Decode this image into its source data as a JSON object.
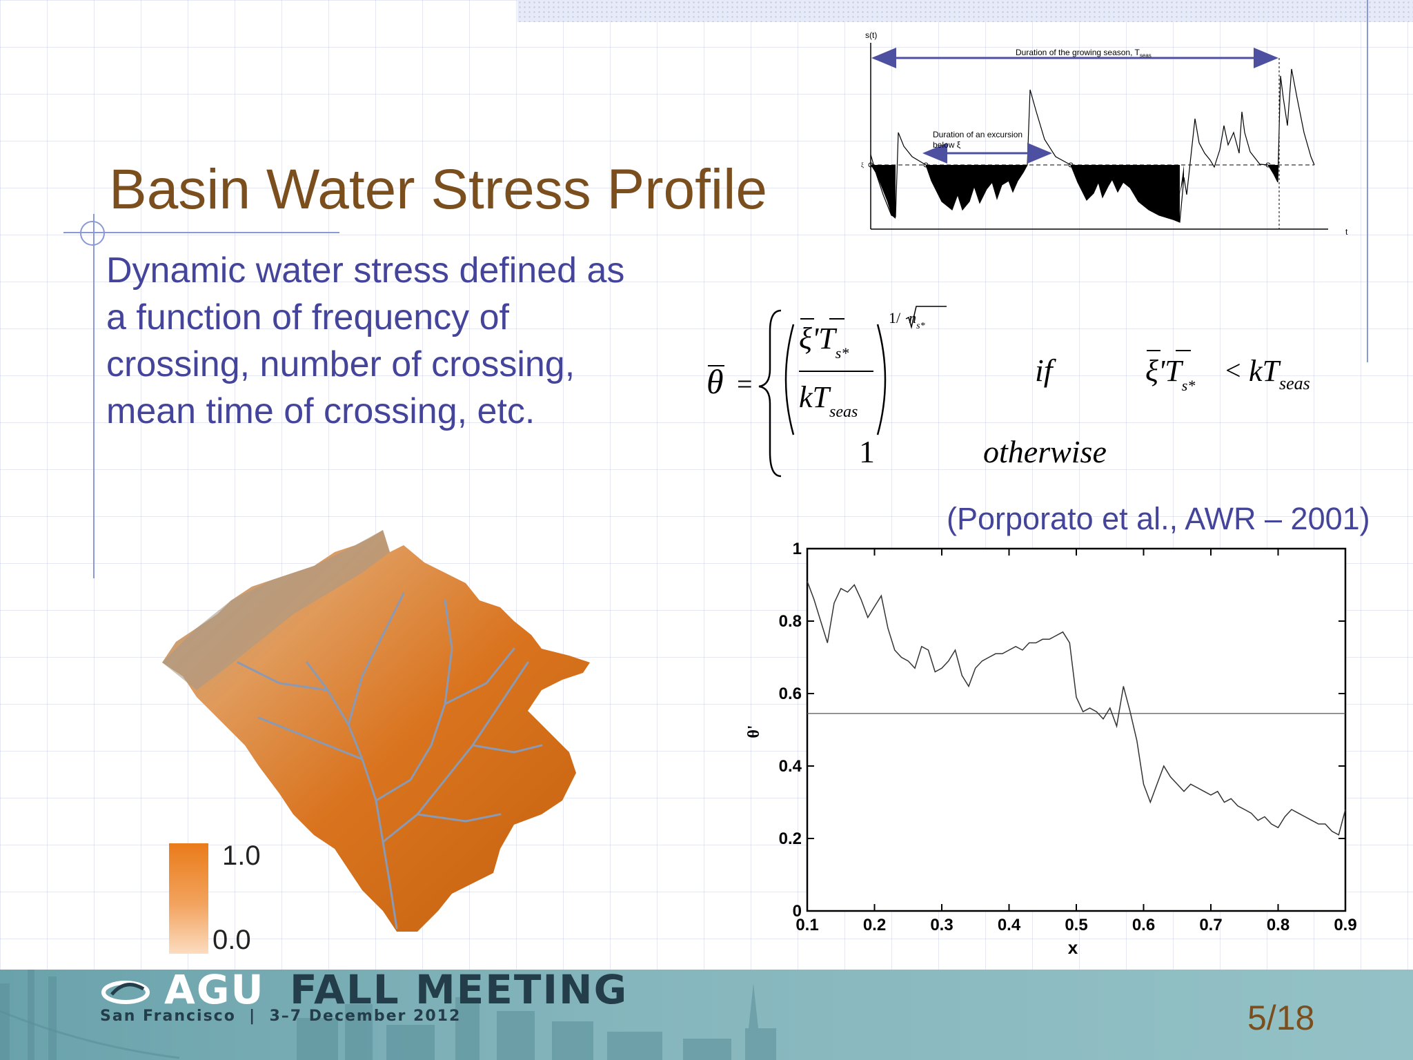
{
  "slide": {
    "title": "Basin Water Stress Profile",
    "body": "Dynamic water stress defined as a function of frequency of crossing, number of crossing, mean time of crossing, etc.",
    "citation": "(Porporato et al., AWR – 2001)",
    "page": "5/18"
  },
  "top_chart": {
    "y_label": "s(t)",
    "x_label": "t",
    "threshold_label": "ξ",
    "season_label": "Duration of the growing season, T",
    "season_subscript": "seas",
    "excursion_label_line1": "Duration of an excursion",
    "excursion_label_line2": "below ξ"
  },
  "equation": {
    "lhs": "θ",
    "equals": "=",
    "exponent_prefix": "1/",
    "exponent_n": "n",
    "exponent_sub": "s*",
    "numerator": "ξ'T",
    "numerator_sub": "s*",
    "denominator": "kT",
    "denominator_sub": "seas",
    "if_word": "if",
    "condition_left": "ξ'T",
    "condition_left_sub": "s*",
    "condition_lt": "<",
    "condition_right": "kT",
    "condition_right_sub": "seas",
    "otherwise_value": "1",
    "otherwise_word": "otherwise"
  },
  "legend": {
    "max": "1.0",
    "min": "0.0",
    "color_high": "#ea7b1a",
    "color_low": "#fcdcc0"
  },
  "chart_data": {
    "type": "line",
    "xlabel": "x",
    "ylabel": "θ'",
    "xlim": [
      0.1,
      0.9
    ],
    "ylim": [
      0,
      1
    ],
    "xticks": [
      "0.1",
      "0.2",
      "0.3",
      "0.4",
      "0.5",
      "0.6",
      "0.7",
      "0.8",
      "0.9"
    ],
    "yticks": [
      "0",
      "0.2",
      "0.4",
      "0.6",
      "0.8",
      "1"
    ],
    "reference_line": 0.545,
    "series": [
      {
        "x": [
          0.1,
          0.11,
          0.12,
          0.13,
          0.14,
          0.15,
          0.16,
          0.17,
          0.18,
          0.19,
          0.2,
          0.21,
          0.22,
          0.23,
          0.24,
          0.25,
          0.26,
          0.27,
          0.28,
          0.29,
          0.3,
          0.31,
          0.32,
          0.33,
          0.34,
          0.35,
          0.36,
          0.37,
          0.38,
          0.39,
          0.4,
          0.41,
          0.42,
          0.43,
          0.44,
          0.45,
          0.46,
          0.47,
          0.48,
          0.49,
          0.5,
          0.51,
          0.52,
          0.53,
          0.54,
          0.55,
          0.56,
          0.57,
          0.58,
          0.59,
          0.6,
          0.61,
          0.62,
          0.63,
          0.64,
          0.65,
          0.66,
          0.67,
          0.68,
          0.69,
          0.7,
          0.71,
          0.72,
          0.73,
          0.74,
          0.75,
          0.76,
          0.77,
          0.78,
          0.79,
          0.8,
          0.81,
          0.82,
          0.83,
          0.84,
          0.85,
          0.86,
          0.87,
          0.88,
          0.89,
          0.9
        ],
        "y": [
          0.91,
          0.86,
          0.8,
          0.74,
          0.85,
          0.89,
          0.88,
          0.9,
          0.86,
          0.81,
          0.84,
          0.87,
          0.78,
          0.72,
          0.7,
          0.69,
          0.67,
          0.73,
          0.72,
          0.66,
          0.67,
          0.69,
          0.72,
          0.65,
          0.62,
          0.67,
          0.69,
          0.7,
          0.71,
          0.71,
          0.72,
          0.73,
          0.72,
          0.74,
          0.74,
          0.75,
          0.75,
          0.76,
          0.77,
          0.74,
          0.59,
          0.55,
          0.56,
          0.55,
          0.53,
          0.56,
          0.51,
          0.62,
          0.55,
          0.47,
          0.35,
          0.3,
          0.35,
          0.4,
          0.37,
          0.35,
          0.33,
          0.35,
          0.34,
          0.33,
          0.32,
          0.33,
          0.3,
          0.31,
          0.29,
          0.28,
          0.27,
          0.25,
          0.26,
          0.24,
          0.23,
          0.26,
          0.28,
          0.27,
          0.26,
          0.25,
          0.24,
          0.24,
          0.22,
          0.21,
          0.28
        ]
      }
    ]
  }
}
